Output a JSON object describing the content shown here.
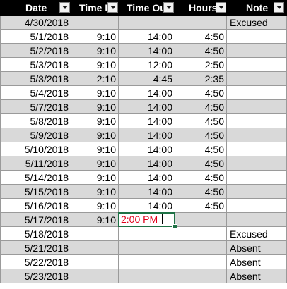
{
  "columns": [
    {
      "label": "Date"
    },
    {
      "label": "Time I"
    },
    {
      "label": "Time Ou"
    },
    {
      "label": "Hours"
    },
    {
      "label": "Note"
    }
  ],
  "rows": [
    {
      "date": "4/30/2018",
      "time_in": "",
      "time_out": "",
      "hours": "",
      "note": "Excused"
    },
    {
      "date": "5/1/2018",
      "time_in": "9:10",
      "time_out": "14:00",
      "hours": "4:50",
      "note": ""
    },
    {
      "date": "5/2/2018",
      "time_in": "9:10",
      "time_out": "14:00",
      "hours": "4:50",
      "note": ""
    },
    {
      "date": "5/3/2018",
      "time_in": "9:10",
      "time_out": "12:00",
      "hours": "2:50",
      "note": ""
    },
    {
      "date": "5/3/2018",
      "time_in": "2:10",
      "time_out": "4:45",
      "hours": "2:35",
      "note": ""
    },
    {
      "date": "5/4/2018",
      "time_in": "9:10",
      "time_out": "14:00",
      "hours": "4:50",
      "note": ""
    },
    {
      "date": "5/7/2018",
      "time_in": "9:10",
      "time_out": "14:00",
      "hours": "4:50",
      "note": ""
    },
    {
      "date": "5/8/2018",
      "time_in": "9:10",
      "time_out": "14:00",
      "hours": "4:50",
      "note": ""
    },
    {
      "date": "5/9/2018",
      "time_in": "9:10",
      "time_out": "14:00",
      "hours": "4:50",
      "note": ""
    },
    {
      "date": "5/10/2018",
      "time_in": "9:10",
      "time_out": "14:00",
      "hours": "4:50",
      "note": ""
    },
    {
      "date": "5/11/2018",
      "time_in": "9:10",
      "time_out": "14:00",
      "hours": "4:50",
      "note": ""
    },
    {
      "date": "5/14/2018",
      "time_in": "9:10",
      "time_out": "14:00",
      "hours": "4:50",
      "note": ""
    },
    {
      "date": "5/15/2018",
      "time_in": "9:10",
      "time_out": "14:00",
      "hours": "4:50",
      "note": ""
    },
    {
      "date": "5/16/2018",
      "time_in": "9:10",
      "time_out": "14:00",
      "hours": "4:50",
      "note": ""
    },
    {
      "date": "5/17/2018",
      "time_in": "9:10",
      "time_out": "2:00 PM",
      "hours": "",
      "note": "",
      "editing": "time_out"
    },
    {
      "date": "5/18/2018",
      "time_in": "",
      "time_out": "",
      "hours": "",
      "note": "Excused"
    },
    {
      "date": "5/21/2018",
      "time_in": "",
      "time_out": "",
      "hours": "",
      "note": "Absent"
    },
    {
      "date": "5/22/2018",
      "time_in": "",
      "time_out": "",
      "hours": "",
      "note": "Absent"
    },
    {
      "date": "5/23/2018",
      "time_in": "",
      "time_out": "",
      "hours": "",
      "note": "Absent"
    }
  ],
  "colors": {
    "header_bg": "#000000",
    "header_text": "#ffffff",
    "stripe_bg": "#d9d9d9",
    "editing_text": "#e0001a",
    "selection_border": "#1e7145"
  },
  "icons": {
    "filter": "filter-dropdown-icon"
  }
}
